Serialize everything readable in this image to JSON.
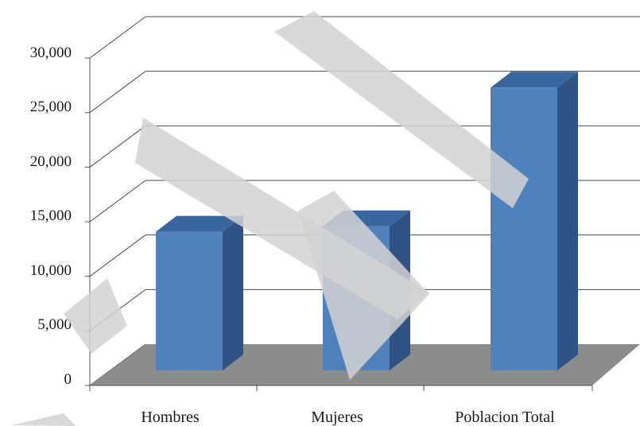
{
  "chart_data": {
    "type": "bar",
    "categories": [
      "Hombres",
      "Mujeres",
      "Poblacion Total"
    ],
    "values": [
      12700,
      13200,
      25900
    ],
    "ylim": [
      0,
      30000
    ],
    "yticks": [
      "0",
      "5,000",
      "10,000",
      "15,000",
      "20,000",
      "25,000",
      "30,000"
    ],
    "ytick_values": [
      0,
      5000,
      10000,
      15000,
      20000,
      25000,
      30000
    ],
    "grid": true,
    "three_d": true,
    "colors": {
      "bar_front": "#4f81bd",
      "bar_side": "#2f5384",
      "bar_top": "#3a66a0",
      "floor": "#8c8c8c",
      "gridline": "#4a4a4a"
    }
  }
}
